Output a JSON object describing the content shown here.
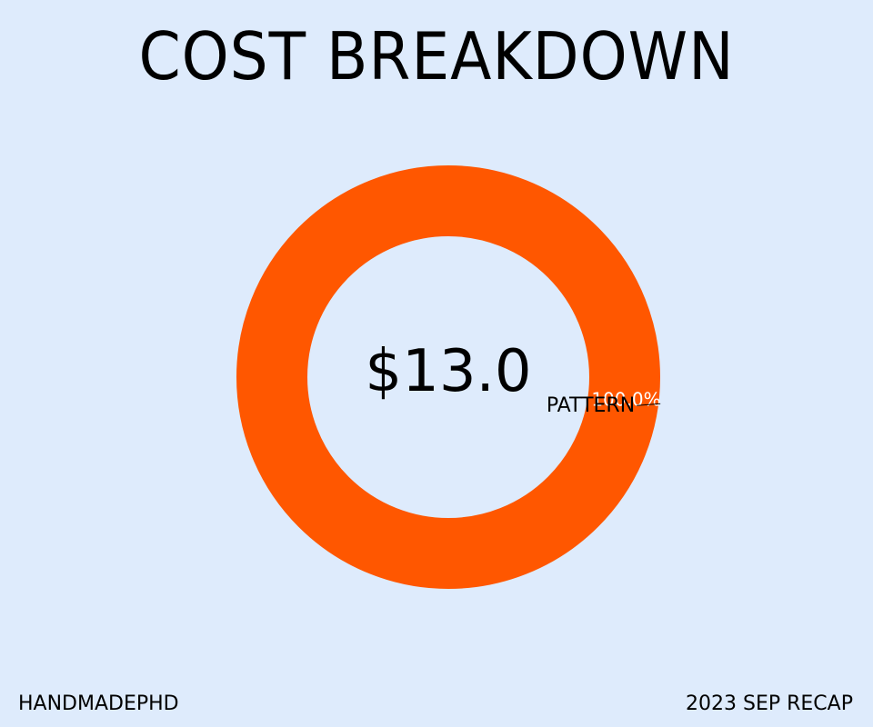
{
  "header": {
    "title": "COST BREAKDOWN"
  },
  "chart_data": {
    "type": "pie",
    "style": "donut",
    "title": "COST BREAKDOWN",
    "center_label": "$13.0",
    "slices": [
      {
        "label": "PATTERN",
        "value": 13.0,
        "percent_label": "100.0%",
        "color": "#ff5700"
      }
    ],
    "legend": "none",
    "grid": false
  },
  "footer": {
    "left": "HANDMADEPHD",
    "right": "2023 SEP RECAP"
  },
  "colors": {
    "background": "#deebfc",
    "slice": "#ff5700"
  }
}
